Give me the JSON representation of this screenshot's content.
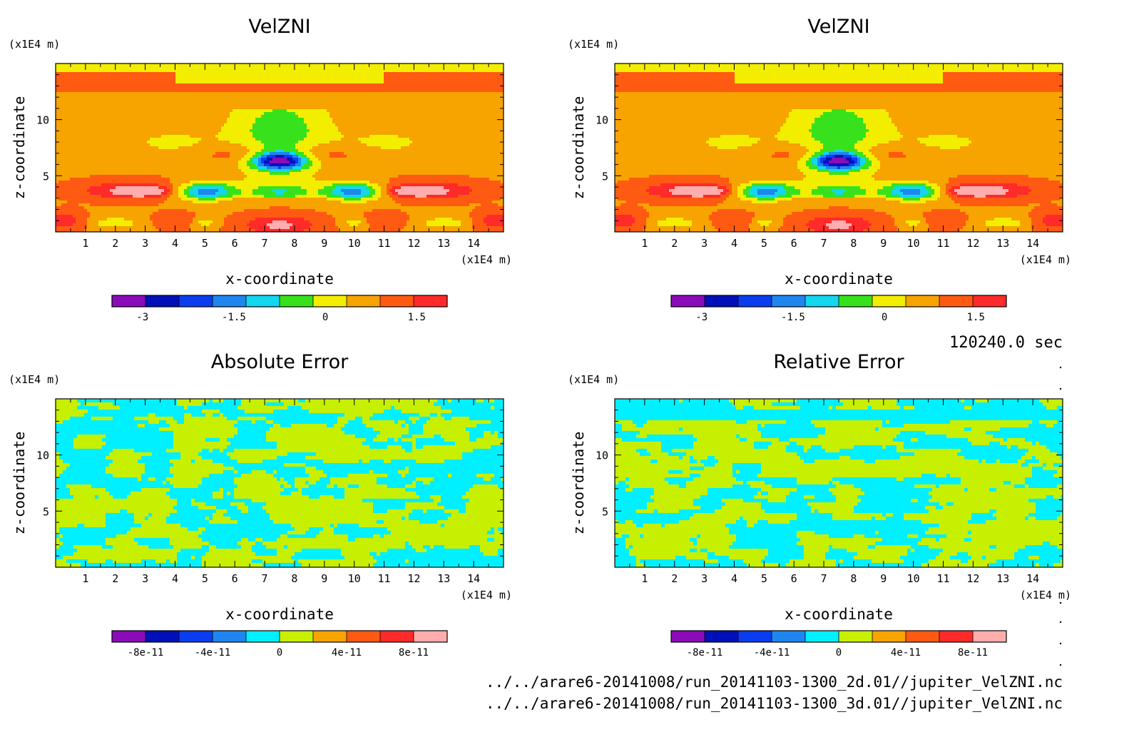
{
  "timestamp": "120240.0 sec",
  "files": [
    "../../arare6-20141008/run_20141103-1300_2d.01//jupiter_VelZNI.nc",
    "../../arare6-20141008/run_20141103-1300_3d.01//jupiter_VelZNI.nc"
  ],
  "palette": [
    "#8a0bb8",
    "#0010b8",
    "#0a3cf0",
    "#1f86f0",
    "#13d6ef",
    "#37e21d",
    "#f3ee00",
    "#f7a300",
    "#ff5a12",
    "#ff2a2a",
    "#ffadad"
  ],
  "error_palette": [
    "#8a0bb8",
    "#0010b8",
    "#0a3cf0",
    "#1f86f0",
    "#00f0ff",
    "#c7ef00",
    "#f7a300",
    "#ff5a12",
    "#ff2a2a",
    "#ffadad"
  ],
  "chart_data": [
    {
      "id": "velzni-2d",
      "type": "heatmap",
      "title": "VelZNI",
      "xlabel": "x-coordinate",
      "ylabel": "z-coordinate",
      "x_unit": "(x1E4 m)",
      "y_unit": "(x1E4 m)",
      "xlim": [
        0,
        15
      ],
      "ylim": [
        0,
        15
      ],
      "xticks": [
        "1",
        "2",
        "3",
        "4",
        "5",
        "6",
        "7",
        "8",
        "9",
        "10",
        "11",
        "12",
        "13",
        "14"
      ],
      "yticks": [
        "5",
        "10"
      ],
      "colorbar": {
        "min": -3.5,
        "max": 2,
        "ticks": [
          "-3",
          "-1.5",
          "0",
          "1.5"
        ],
        "tick_values": [
          -3,
          -1.5,
          0,
          1.5
        ]
      }
    },
    {
      "id": "velzni-3d",
      "type": "heatmap",
      "title": "VelZNI",
      "xlabel": "x-coordinate",
      "ylabel": "z-coordinate",
      "x_unit": "(x1E4 m)",
      "y_unit": "(x1E4 m)",
      "xlim": [
        0,
        15
      ],
      "ylim": [
        0,
        15
      ],
      "xticks": [
        "1",
        "2",
        "3",
        "4",
        "5",
        "6",
        "7",
        "8",
        "9",
        "10",
        "11",
        "12",
        "13",
        "14"
      ],
      "yticks": [
        "5",
        "10"
      ],
      "colorbar": {
        "min": -3.5,
        "max": 2,
        "ticks": [
          "-3",
          "-1.5",
          "0",
          "1.5"
        ],
        "tick_values": [
          -3,
          -1.5,
          0,
          1.5
        ]
      }
    },
    {
      "id": "absolute-error",
      "type": "heatmap",
      "title": "Absolute Error",
      "xlabel": "x-coordinate",
      "ylabel": "z-coordinate",
      "x_unit": "(x1E4 m)",
      "y_unit": "(x1E4 m)",
      "xlim": [
        0,
        15
      ],
      "ylim": [
        0,
        15
      ],
      "xticks": [
        "1",
        "2",
        "3",
        "4",
        "5",
        "6",
        "7",
        "8",
        "9",
        "10",
        "11",
        "12",
        "13",
        "14"
      ],
      "yticks": [
        "5",
        "10"
      ],
      "colorbar": {
        "min": -1e-10,
        "max": 1e-10,
        "ticks": [
          "-8e-11",
          "-4e-11",
          "0",
          "4e-11",
          "8e-11"
        ],
        "tick_values": [
          -8e-11,
          -4e-11,
          0,
          4e-11,
          8e-11
        ]
      }
    },
    {
      "id": "relative-error",
      "type": "heatmap",
      "title": "Relative Error",
      "xlabel": "x-coordinate",
      "ylabel": "z-coordinate",
      "x_unit": "(x1E4 m)",
      "y_unit": "(x1E4 m)",
      "xlim": [
        0,
        15
      ],
      "ylim": [
        0,
        15
      ],
      "xticks": [
        "1",
        "2",
        "3",
        "4",
        "5",
        "6",
        "7",
        "8",
        "9",
        "10",
        "11",
        "12",
        "13",
        "14"
      ],
      "yticks": [
        "5",
        "10"
      ],
      "colorbar": {
        "min": -1e-10,
        "max": 1e-10,
        "ticks": [
          "-8e-11",
          "-4e-11",
          "0",
          "4e-11",
          "8e-11"
        ],
        "tick_values": [
          -8e-11,
          -4e-11,
          0,
          4e-11,
          8e-11
        ]
      }
    }
  ]
}
